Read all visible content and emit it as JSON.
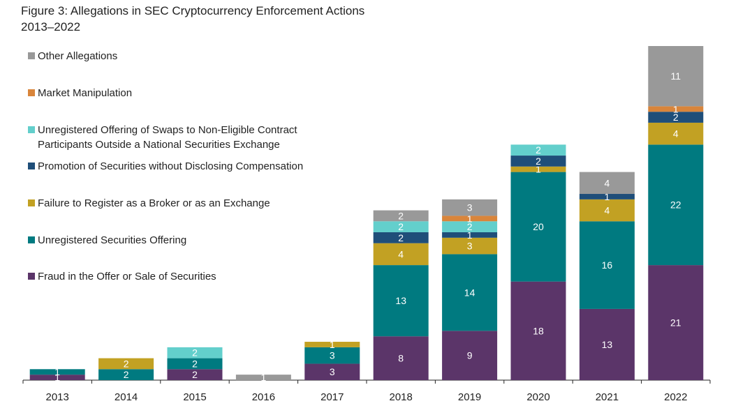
{
  "chart_data": {
    "type": "bar",
    "stacked": true,
    "title": "Figure 3: Allegations in SEC Cryptocurrency Enforcement Actions",
    "subtitle": "2013–2022",
    "xlabel": "",
    "ylabel": "",
    "ylim": [
      0,
      61
    ],
    "grid": false,
    "legend_placement": "top-left",
    "categories": [
      "2013",
      "2014",
      "2015",
      "2016",
      "2017",
      "2018",
      "2019",
      "2020",
      "2021",
      "2022"
    ],
    "series": [
      {
        "name": "Fraud in the Offer or Sale of Securities",
        "color": "#5b3569",
        "values": [
          1,
          0,
          2,
          0,
          3,
          8,
          9,
          18,
          13,
          21
        ]
      },
      {
        "name": "Unregistered Securities Offering",
        "color": "#007a80",
        "values": [
          1,
          2,
          2,
          0,
          3,
          13,
          14,
          20,
          16,
          22
        ]
      },
      {
        "name": "Failure to Register as a Broker or as an Exchange",
        "color": "#c2a123",
        "values": [
          0,
          2,
          0,
          0,
          1,
          4,
          3,
          1,
          4,
          4
        ]
      },
      {
        "name": "Promotion of Securities without Disclosing Compensation",
        "color": "#1f4e79",
        "values": [
          0,
          0,
          0,
          0,
          0,
          2,
          1,
          2,
          1,
          2
        ]
      },
      {
        "name": "Unregistered Offering of Swaps to Non-Eligible Contract Participants Outside a National Securities Exchange",
        "color": "#63cfcc",
        "values": [
          0,
          0,
          2,
          0,
          0,
          2,
          2,
          2,
          0,
          0
        ]
      },
      {
        "name": "Market Manipulation",
        "color": "#d9853b",
        "values": [
          0,
          0,
          0,
          0,
          0,
          0,
          1,
          0,
          0,
          1
        ]
      },
      {
        "name": "Other Allegations",
        "color": "#999999",
        "values": [
          0,
          0,
          0,
          1,
          0,
          2,
          3,
          0,
          4,
          11
        ]
      }
    ],
    "legend_order": [
      6,
      5,
      4,
      3,
      2,
      1,
      0
    ],
    "legend_lines": {
      "4": [
        "Unregistered Offering of Swaps to Non-Eligible Contract",
        "Participants Outside a National Securities Exchange"
      ]
    }
  }
}
